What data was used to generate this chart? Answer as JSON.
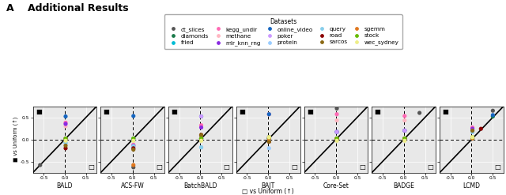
{
  "title_letter": "A",
  "title_text": "Additional Results",
  "legend_title": "Datasets",
  "datasets": [
    {
      "name": "ct_slices",
      "color": "#555555"
    },
    {
      "name": "diamonds",
      "color": "#1a7a4a"
    },
    {
      "name": "fried",
      "color": "#00bcd4"
    },
    {
      "name": "kegg_undir",
      "color": "#ff69b4"
    },
    {
      "name": "methane",
      "color": "#ffb6c1"
    },
    {
      "name": "mlr_knn_rng",
      "color": "#8a2be2"
    },
    {
      "name": "online_video",
      "color": "#1565c0"
    },
    {
      "name": "poker",
      "color": "#cc99ff"
    },
    {
      "name": "protein",
      "color": "#99ccff"
    },
    {
      "name": "query",
      "color": "#87ceeb"
    },
    {
      "name": "road",
      "color": "#8b0000"
    },
    {
      "name": "sarcos",
      "color": "#8b6914"
    },
    {
      "name": "sgemm",
      "color": "#e07820"
    },
    {
      "name": "stock",
      "color": "#66bb00"
    },
    {
      "name": "wec_sydney",
      "color": "#eeee88"
    }
  ],
  "methods": [
    "BALD",
    "ACS-FW",
    "BatchBALD",
    "BAIT",
    "Core-Set",
    "BADGE",
    "LCMD"
  ],
  "scatter": {
    "BALD": {
      "ct_slices": [
        -0.58,
        -0.58
      ],
      "diamonds": [
        0.02,
        0.02
      ],
      "fried": [
        0.02,
        0.02
      ],
      "kegg_undir": [
        0.02,
        0.38
      ],
      "methane": [
        0.02,
        0.3
      ],
      "mlr_knn_rng": [
        0.02,
        0.35
      ],
      "online_video": [
        0.02,
        0.52
      ],
      "poker": [
        0.02,
        0.02
      ],
      "protein": [
        0.02,
        -0.08
      ],
      "query": [
        0.02,
        -0.08
      ],
      "road": [
        0.02,
        -0.2
      ],
      "sarcos": [
        0.02,
        -0.14
      ],
      "sgemm": [
        0.02,
        0.02
      ],
      "stock": [
        0.02,
        0.02
      ],
      "wec_sydney": [
        0.02,
        -0.03
      ]
    },
    "ACS-FW": {
      "ct_slices": [
        0.02,
        -0.63
      ],
      "diamonds": [
        0.02,
        0.02
      ],
      "fried": [
        0.02,
        -0.02
      ],
      "kegg_undir": [
        0.02,
        -0.12
      ],
      "methane": [
        0.02,
        -0.14
      ],
      "mlr_knn_rng": [
        0.02,
        -0.14
      ],
      "online_video": [
        0.02,
        0.53
      ],
      "poker": [
        0.02,
        -0.22
      ],
      "protein": [
        0.02,
        -0.17
      ],
      "query": [
        0.02,
        -0.15
      ],
      "road": [
        0.02,
        -0.2
      ],
      "sarcos": [
        0.02,
        -0.23
      ],
      "sgemm": [
        0.02,
        -0.58
      ],
      "stock": [
        0.02,
        0.02
      ],
      "wec_sydney": [
        0.02,
        -0.03
      ]
    },
    "BatchBALD": {
      "ct_slices": [
        0.02,
        0.02
      ],
      "diamonds": [
        0.02,
        0.02
      ],
      "fried": [
        0.02,
        0.02
      ],
      "kegg_undir": [
        0.02,
        0.32
      ],
      "methane": [
        0.02,
        0.1
      ],
      "mlr_knn_rng": [
        0.02,
        0.27
      ],
      "online_video": [
        0.02,
        0.52
      ],
      "poker": [
        0.02,
        0.52
      ],
      "protein": [
        0.02,
        -0.18
      ],
      "query": [
        0.02,
        -0.18
      ],
      "road": [
        0.02,
        0.1
      ],
      "sarcos": [
        0.02,
        0.1
      ],
      "sgemm": [
        0.02,
        0.02
      ],
      "stock": [
        0.02,
        0.02
      ],
      "wec_sydney": [
        0.02,
        -0.03
      ]
    },
    "BAIT": {
      "ct_slices": [
        0.02,
        0.02
      ],
      "diamonds": [
        0.02,
        0.02
      ],
      "fried": [
        0.02,
        0.02
      ],
      "kegg_undir": [
        0.02,
        0.57
      ],
      "methane": [
        0.02,
        0.57
      ],
      "mlr_knn_rng": [
        0.02,
        0.05
      ],
      "online_video": [
        0.02,
        0.57
      ],
      "poker": [
        0.02,
        0.05
      ],
      "protein": [
        0.02,
        -0.2
      ],
      "query": [
        0.02,
        -0.03
      ],
      "road": [
        0.02,
        -0.05
      ],
      "sarcos": [
        0.02,
        -0.05
      ],
      "sgemm": [
        0.02,
        0.02
      ],
      "stock": [
        0.02,
        0.05
      ],
      "wec_sydney": [
        0.02,
        0.05
      ]
    },
    "Core-Set": {
      "ct_slices": [
        0.02,
        0.7
      ],
      "diamonds": [
        0.02,
        0.02
      ],
      "fried": [
        0.02,
        0.02
      ],
      "kegg_undir": [
        0.02,
        0.57
      ],
      "methane": [
        0.02,
        0.43
      ],
      "mlr_knn_rng": [
        0.02,
        0.17
      ],
      "online_video": [
        0.02,
        0.17
      ],
      "poker": [
        0.02,
        0.17
      ],
      "protein": [
        0.02,
        0.02
      ],
      "query": [
        0.02,
        0.02
      ],
      "road": [
        0.02,
        0.02
      ],
      "sarcos": [
        0.02,
        0.02
      ],
      "sgemm": [
        0.02,
        0.02
      ],
      "stock": [
        0.02,
        0.02
      ],
      "wec_sydney": [
        0.02,
        -0.03
      ]
    },
    "BADGE": {
      "ct_slices": [
        0.37,
        0.6
      ],
      "diamonds": [
        0.02,
        0.02
      ],
      "fried": [
        0.02,
        0.02
      ],
      "kegg_undir": [
        0.02,
        0.53
      ],
      "methane": [
        0.02,
        0.43
      ],
      "mlr_knn_rng": [
        0.02,
        0.2
      ],
      "online_video": [
        0.02,
        0.2
      ],
      "poker": [
        0.02,
        0.2
      ],
      "protein": [
        0.02,
        0.02
      ],
      "query": [
        0.02,
        0.02
      ],
      "road": [
        0.02,
        0.02
      ],
      "sarcos": [
        0.02,
        0.02
      ],
      "sgemm": [
        0.02,
        0.02
      ],
      "stock": [
        0.02,
        0.02
      ],
      "wec_sydney": [
        0.02,
        -0.03
      ]
    },
    "LCMD": {
      "ct_slices": [
        0.5,
        0.65
      ],
      "diamonds": [
        0.5,
        0.52
      ],
      "fried": [
        0.02,
        0.02
      ],
      "kegg_undir": [
        0.02,
        0.27
      ],
      "methane": [
        0.02,
        0.22
      ],
      "mlr_knn_rng": [
        0.02,
        0.24
      ],
      "online_video": [
        0.5,
        0.55
      ],
      "poker": [
        0.02,
        0.2
      ],
      "protein": [
        0.02,
        0.17
      ],
      "query": [
        0.02,
        0.17
      ],
      "road": [
        0.22,
        0.24
      ],
      "sarcos": [
        0.02,
        0.2
      ],
      "sgemm": [
        0.02,
        0.02
      ],
      "stock": [
        0.02,
        0.05
      ],
      "wec_sydney": [
        0.02,
        0.05
      ]
    }
  },
  "bg_color": "#e8e8e8"
}
